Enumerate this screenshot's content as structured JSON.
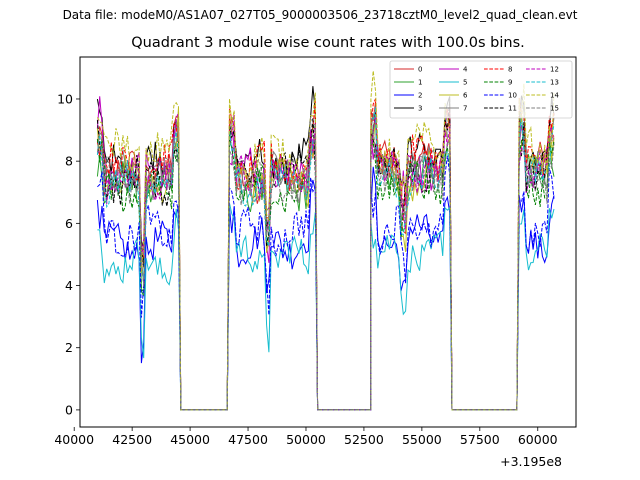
{
  "suptitle": "Data file: modeM0/AS1A07_027T05_9000003506_23718cztM0_level2_quad_clean.evt",
  "title": "Quadrant 3 module wise count rates with 100.0s bins.",
  "chart_data": {
    "type": "line",
    "x_offset_label": "+3.195e8",
    "xlim": [
      40250,
      61650
    ],
    "ylim": [
      -0.55,
      11.35
    ],
    "xticks": [
      40000,
      42500,
      45000,
      47500,
      50000,
      52500,
      55000,
      57500,
      60000
    ],
    "xtick_labels": [
      "40000",
      "42500",
      "45000",
      "47500",
      "50000",
      "52500",
      "55000",
      "57500",
      "60000"
    ],
    "yticks": [
      0,
      2,
      4,
      6,
      8,
      10
    ],
    "ytick_labels": [
      "0",
      "2",
      "4",
      "6",
      "8",
      "10"
    ],
    "legend_position": "upper right",
    "legend_columns": 4,
    "segments": [
      {
        "start": 41000,
        "end": 44500
      },
      {
        "start": 46700,
        "end": 50400
      },
      {
        "start": 52800,
        "end": 56200
      },
      {
        "start": 59200,
        "end": 60700
      }
    ],
    "gaps": [
      {
        "start": 44600,
        "end": 46600,
        "value": 0
      },
      {
        "start": 50500,
        "end": 52800,
        "value": 0
      },
      {
        "start": 56300,
        "end": 59100,
        "value": 0
      }
    ],
    "series": [
      {
        "name": "0",
        "color": "#d62728",
        "dash": "solid",
        "segment_levels": [
          7.6,
          7.5,
          7.9,
          7.8
        ]
      },
      {
        "name": "1",
        "color": "#2ca02c",
        "dash": "solid",
        "segment_levels": [
          7.2,
          7.2,
          7.5,
          7.4
        ]
      },
      {
        "name": "2",
        "color": "#0000ff",
        "dash": "solid",
        "segment_levels": [
          5.2,
          5.4,
          5.6,
          5.4
        ]
      },
      {
        "name": "3",
        "color": "#000000",
        "dash": "solid",
        "segment_levels": [
          7.9,
          8.0,
          8.2,
          8.1
        ]
      },
      {
        "name": "4",
        "color": "#bf00bf",
        "dash": "solid",
        "segment_levels": [
          7.7,
          7.6,
          7.9,
          7.8
        ]
      },
      {
        "name": "5",
        "color": "#17becf",
        "dash": "solid",
        "segment_levels": [
          4.7,
          4.9,
          5.1,
          4.9
        ]
      },
      {
        "name": "6",
        "color": "#bcbd22",
        "dash": "solid",
        "segment_levels": [
          7.4,
          7.4,
          7.6,
          7.5
        ]
      },
      {
        "name": "7",
        "color": "#7f7f7f",
        "dash": "solid",
        "segment_levels": [
          7.5,
          7.5,
          7.8,
          7.8
        ]
      },
      {
        "name": "8",
        "color": "#ff0000",
        "dash": "dashed",
        "segment_levels": [
          7.8,
          7.8,
          8.1,
          8.0
        ]
      },
      {
        "name": "9",
        "color": "#008000",
        "dash": "dashed",
        "segment_levels": [
          7.0,
          7.1,
          7.3,
          7.3
        ]
      },
      {
        "name": "10",
        "color": "#0000ff",
        "dash": "dashed",
        "segment_levels": [
          5.7,
          5.7,
          5.9,
          5.8
        ]
      },
      {
        "name": "11",
        "color": "#000000",
        "dash": "dashed",
        "segment_levels": [
          7.4,
          7.6,
          7.7,
          7.6
        ]
      },
      {
        "name": "12",
        "color": "#bf00bf",
        "dash": "dashed",
        "segment_levels": [
          7.5,
          7.5,
          7.7,
          7.6
        ]
      },
      {
        "name": "13",
        "color": "#17becf",
        "dash": "dashed",
        "segment_levels": [
          7.2,
          7.3,
          7.4,
          7.4
        ]
      },
      {
        "name": "14",
        "color": "#bcbd22",
        "dash": "dashed",
        "segment_levels": [
          8.3,
          8.2,
          8.4,
          8.3
        ]
      },
      {
        "name": "15",
        "color": "#7f7f7f",
        "dash": "dashed",
        "segment_levels": [
          7.3,
          7.3,
          7.5,
          7.4
        ]
      }
    ]
  }
}
